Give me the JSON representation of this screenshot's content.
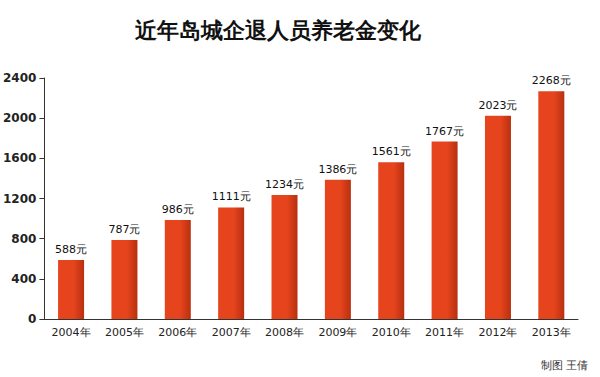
{
  "chart_data": {
    "type": "bar",
    "title": "近年岛城企退人员养老金变化",
    "categories": [
      "2004年",
      "2005年",
      "2006年",
      "2007年",
      "2008年",
      "2009年",
      "2010年",
      "2011年",
      "2012年",
      "2013年"
    ],
    "values": [
      588,
      787,
      986,
      1111,
      1234,
      1386,
      1561,
      1767,
      2023,
      2268
    ],
    "value_labels": [
      "588元",
      "787元",
      "986元",
      "1111元",
      "1234元",
      "1386元",
      "1561元",
      "1767元",
      "2023元",
      "2268元"
    ],
    "data_labels": true,
    "color": "#e5441d",
    "ylim": [
      0,
      2400
    ],
    "yticks": [
      0,
      400,
      800,
      1200,
      1600,
      2000,
      2400
    ],
    "grid": false,
    "annotations": [
      "制图 王倩"
    ]
  }
}
